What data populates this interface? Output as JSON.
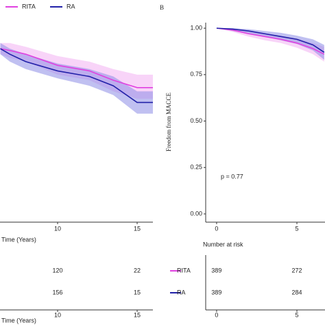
{
  "chart_data": [
    {
      "type": "line",
      "x": [
        6.4,
        7,
        8,
        10,
        12,
        13.5,
        15,
        16
      ],
      "xlim": [
        6.38,
        15.99
      ],
      "ylim": [
        -0.037,
        1.03
      ],
      "xticks": [
        10,
        15
      ],
      "xlabel": "Time (Years)",
      "series": [
        {
          "name": "RITA",
          "color": "#e040e0",
          "band_color": "#f2b0f2",
          "values": [
            0.89,
            0.88,
            0.86,
            0.8,
            0.77,
            0.72,
            0.68,
            0.68
          ],
          "ci_upper": [
            0.92,
            0.92,
            0.9,
            0.85,
            0.82,
            0.78,
            0.75,
            0.75
          ],
          "ci_lower": [
            0.86,
            0.84,
            0.82,
            0.75,
            0.72,
            0.66,
            0.62,
            0.62
          ]
        },
        {
          "name": "RA",
          "color": "#2020a8",
          "band_color": "#8c8ce6",
          "values": [
            0.89,
            0.86,
            0.82,
            0.77,
            0.74,
            0.69,
            0.6,
            0.6
          ],
          "ci_upper": [
            0.92,
            0.89,
            0.86,
            0.81,
            0.78,
            0.74,
            0.66,
            0.66
          ],
          "ci_lower": [
            0.86,
            0.82,
            0.78,
            0.73,
            0.69,
            0.64,
            0.54,
            0.54
          ]
        }
      ],
      "risk_table": {
        "x": [
          10,
          15
        ],
        "rows": [
          {
            "values": [
              120,
              22
            ]
          },
          {
            "values": [
              156,
              15
            ]
          }
        ],
        "xticks": [
          10,
          15
        ],
        "xlabel": "Time (Years)"
      }
    },
    {
      "type": "line",
      "panel_label": "B",
      "x": [
        0,
        1,
        2,
        3,
        4,
        5,
        6,
        6.7
      ],
      "xlim": [
        -0.68,
        6.75
      ],
      "ylim": [
        -0.037,
        1.03
      ],
      "xticks": [
        0,
        5
      ],
      "yticks": [
        {
          "value": 0,
          "label": "0.00"
        },
        {
          "value": 0.25,
          "label": "0.25"
        },
        {
          "value": 0.5,
          "label": "0.50"
        },
        {
          "value": 0.75,
          "label": "0.75"
        },
        {
          "value": 1,
          "label": "1.00"
        }
      ],
      "ylabel": "Freedom from MACCE",
      "annotation": "p = 0.77",
      "series": [
        {
          "name": "RITA",
          "color": "#e040e0",
          "band_color": "#f2b0f2",
          "values": [
            1,
            0.99,
            0.97,
            0.955,
            0.94,
            0.92,
            0.89,
            0.86
          ],
          "ci_upper": [
            1,
            1,
            0.985,
            0.97,
            0.96,
            0.945,
            0.92,
            0.9
          ],
          "ci_lower": [
            1,
            0.98,
            0.955,
            0.935,
            0.92,
            0.895,
            0.86,
            0.82
          ]
        },
        {
          "name": "RA",
          "color": "#2020a8",
          "band_color": "#8c8ce6",
          "values": [
            1,
            0.995,
            0.985,
            0.97,
            0.955,
            0.94,
            0.91,
            0.87
          ],
          "ci_upper": [
            1,
            1,
            0.995,
            0.985,
            0.975,
            0.96,
            0.94,
            0.91
          ],
          "ci_lower": [
            1,
            0.985,
            0.97,
            0.955,
            0.935,
            0.915,
            0.88,
            0.83
          ]
        }
      ],
      "risk_table": {
        "title": "Number at risk",
        "x": [
          0,
          5
        ],
        "rows": [
          {
            "name": "RITA",
            "color": "#e040e0",
            "values": [
              389,
              272
            ]
          },
          {
            "name": "RA",
            "color": "#2020a8",
            "values": [
              389,
              284
            ]
          }
        ],
        "xticks": [
          0,
          5
        ]
      }
    }
  ]
}
